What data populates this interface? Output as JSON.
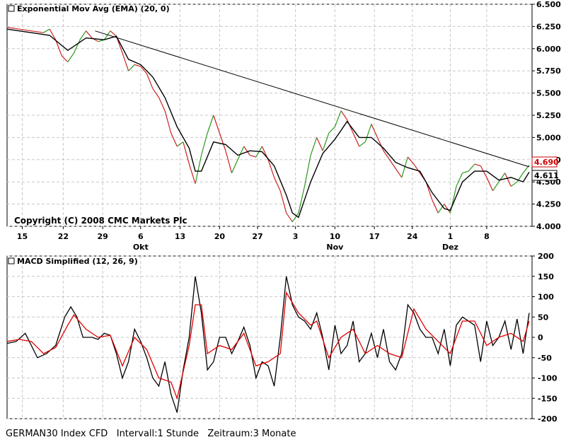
{
  "footer": {
    "instrument": "GERMAN30 Index CFD",
    "interval": "Intervall:1 Stunde",
    "period": "Zeitraum:3 Monate"
  },
  "colors": {
    "up": "#2a9a1a",
    "down": "#cc2020",
    "ema": "#000000",
    "macd": "#000000",
    "signal": "#e00000",
    "grid": "#c8c8c8",
    "current_price_box": "#cc0000"
  },
  "chart_data": [
    {
      "type": "line",
      "title": "Exponential Mov Avg (EMA) (20, 0)",
      "copyright": "Copyright (C) 2008 CMC Markets Plc",
      "ylim": [
        4.0,
        6.5
      ],
      "yticks": [
        "4.000",
        "4.250",
        "4.500",
        "4.750",
        "5.000",
        "5.250",
        "5.500",
        "5.750",
        "6.000",
        "6.250",
        "6.500"
      ],
      "x_ticks": [
        "15",
        "22",
        "29",
        "6",
        "13",
        "20",
        "27",
        "3",
        "10",
        "17",
        "24",
        "1",
        "8"
      ],
      "month_labels": [
        "Okt",
        "Nov",
        "Dez"
      ],
      "price_label": "4.690",
      "ema_label": "4.611",
      "price_path_points": [
        [
          0,
          6.24
        ],
        [
          4,
          6.22
        ],
        [
          8,
          6.2
        ],
        [
          12,
          6.18
        ],
        [
          14,
          6.22
        ],
        [
          16,
          6.1
        ],
        [
          18,
          5.92
        ],
        [
          20,
          5.85
        ],
        [
          22,
          5.95
        ],
        [
          24,
          6.1
        ],
        [
          26,
          6.2
        ],
        [
          28,
          6.12
        ],
        [
          30,
          6.08
        ],
        [
          32,
          6.1
        ],
        [
          34,
          6.2
        ],
        [
          36,
          6.14
        ],
        [
          38,
          5.95
        ],
        [
          40,
          5.75
        ],
        [
          42,
          5.82
        ],
        [
          44,
          5.8
        ],
        [
          46,
          5.72
        ],
        [
          48,
          5.55
        ],
        [
          50,
          5.45
        ],
        [
          52,
          5.3
        ],
        [
          54,
          5.05
        ],
        [
          56,
          4.9
        ],
        [
          58,
          4.95
        ],
        [
          60,
          4.7
        ],
        [
          62,
          4.48
        ],
        [
          64,
          4.8
        ],
        [
          66,
          5.05
        ],
        [
          68,
          5.25
        ],
        [
          70,
          5.05
        ],
        [
          72,
          4.85
        ],
        [
          74,
          4.6
        ],
        [
          76,
          4.75
        ],
        [
          78,
          4.9
        ],
        [
          80,
          4.8
        ],
        [
          82,
          4.78
        ],
        [
          84,
          4.9
        ],
        [
          86,
          4.75
        ],
        [
          88,
          4.55
        ],
        [
          90,
          4.4
        ],
        [
          92,
          4.15
        ],
        [
          94,
          4.05
        ],
        [
          96,
          4.15
        ],
        [
          98,
          4.45
        ],
        [
          100,
          4.8
        ],
        [
          102,
          5.0
        ],
        [
          104,
          4.85
        ],
        [
          106,
          5.05
        ],
        [
          108,
          5.12
        ],
        [
          110,
          5.3
        ],
        [
          112,
          5.2
        ],
        [
          114,
          5.05
        ],
        [
          116,
          4.9
        ],
        [
          118,
          4.95
        ],
        [
          120,
          5.15
        ],
        [
          122,
          5.0
        ],
        [
          124,
          4.85
        ],
        [
          126,
          4.75
        ],
        [
          128,
          4.65
        ],
        [
          130,
          4.55
        ],
        [
          132,
          4.78
        ],
        [
          134,
          4.7
        ],
        [
          136,
          4.6
        ],
        [
          138,
          4.5
        ],
        [
          140,
          4.3
        ],
        [
          142,
          4.15
        ],
        [
          144,
          4.25
        ],
        [
          146,
          4.15
        ],
        [
          148,
          4.45
        ],
        [
          150,
          4.6
        ],
        [
          152,
          4.62
        ],
        [
          154,
          4.7
        ],
        [
          156,
          4.68
        ],
        [
          158,
          4.55
        ],
        [
          160,
          4.4
        ],
        [
          162,
          4.5
        ],
        [
          164,
          4.6
        ],
        [
          166,
          4.45
        ],
        [
          168,
          4.5
        ],
        [
          170,
          4.6
        ],
        [
          172,
          4.69
        ]
      ],
      "ema_path_points": [
        [
          0,
          6.22
        ],
        [
          8,
          6.18
        ],
        [
          14,
          6.15
        ],
        [
          20,
          5.98
        ],
        [
          26,
          6.12
        ],
        [
          32,
          6.1
        ],
        [
          36,
          6.14
        ],
        [
          40,
          5.88
        ],
        [
          44,
          5.82
        ],
        [
          48,
          5.68
        ],
        [
          52,
          5.45
        ],
        [
          56,
          5.12
        ],
        [
          60,
          4.88
        ],
        [
          62,
          4.62
        ],
        [
          64,
          4.62
        ],
        [
          68,
          4.95
        ],
        [
          72,
          4.92
        ],
        [
          76,
          4.8
        ],
        [
          80,
          4.85
        ],
        [
          84,
          4.84
        ],
        [
          88,
          4.68
        ],
        [
          92,
          4.35
        ],
        [
          94,
          4.15
        ],
        [
          96,
          4.1
        ],
        [
          100,
          4.5
        ],
        [
          104,
          4.82
        ],
        [
          108,
          4.98
        ],
        [
          112,
          5.18
        ],
        [
          116,
          5.0
        ],
        [
          120,
          5.0
        ],
        [
          124,
          4.88
        ],
        [
          128,
          4.72
        ],
        [
          132,
          4.66
        ],
        [
          136,
          4.62
        ],
        [
          140,
          4.38
        ],
        [
          144,
          4.2
        ],
        [
          146,
          4.18
        ],
        [
          150,
          4.5
        ],
        [
          154,
          4.62
        ],
        [
          158,
          4.62
        ],
        [
          162,
          4.52
        ],
        [
          166,
          4.55
        ],
        [
          170,
          4.5
        ],
        [
          172,
          4.61
        ]
      ],
      "trendline": [
        [
          29,
          6.2
        ],
        [
          172,
          4.67
        ]
      ]
    },
    {
      "type": "line",
      "title": "MACD Simplified (12, 26, 9)",
      "ylim": [
        -200,
        200
      ],
      "yticks": [
        "200",
        "150",
        "100",
        "50",
        "0",
        "-50",
        "-100",
        "-150",
        "-200"
      ],
      "series": [
        {
          "values": [
            [
              0,
              -15
            ],
            [
              3,
              -10
            ],
            [
              6,
              10
            ],
            [
              8,
              -20
            ],
            [
              10,
              -50
            ],
            [
              13,
              -40
            ],
            [
              16,
              -20
            ],
            [
              19,
              50
            ],
            [
              21,
              75
            ],
            [
              23,
              50
            ],
            [
              25,
              0
            ],
            [
              28,
              0
            ],
            [
              30,
              -5
            ],
            [
              32,
              10
            ],
            [
              34,
              5
            ],
            [
              36,
              -40
            ],
            [
              38,
              -100
            ],
            [
              40,
              -60
            ],
            [
              42,
              20
            ],
            [
              44,
              -10
            ],
            [
              46,
              -50
            ],
            [
              48,
              -100
            ],
            [
              50,
              -120
            ],
            [
              52,
              -60
            ],
            [
              54,
              -140
            ],
            [
              56,
              -185
            ],
            [
              58,
              -80
            ],
            [
              60,
              0
            ],
            [
              62,
              150
            ],
            [
              64,
              60
            ],
            [
              66,
              -80
            ],
            [
              68,
              -60
            ],
            [
              70,
              0
            ],
            [
              72,
              0
            ],
            [
              74,
              -40
            ],
            [
              76,
              -10
            ],
            [
              78,
              25
            ],
            [
              80,
              -20
            ],
            [
              82,
              -100
            ],
            [
              84,
              -60
            ],
            [
              86,
              -70
            ],
            [
              88,
              -120
            ],
            [
              90,
              0
            ],
            [
              92,
              150
            ],
            [
              94,
              80
            ],
            [
              96,
              50
            ],
            [
              98,
              40
            ],
            [
              100,
              20
            ],
            [
              102,
              60
            ],
            [
              104,
              0
            ],
            [
              106,
              -80
            ],
            [
              108,
              30
            ],
            [
              110,
              -40
            ],
            [
              112,
              -20
            ],
            [
              114,
              40
            ],
            [
              116,
              -60
            ],
            [
              118,
              -40
            ],
            [
              120,
              10
            ],
            [
              122,
              -50
            ],
            [
              124,
              20
            ],
            [
              126,
              -60
            ],
            [
              128,
              -80
            ],
            [
              130,
              -40
            ],
            [
              132,
              80
            ],
            [
              134,
              60
            ],
            [
              136,
              20
            ],
            [
              138,
              0
            ],
            [
              140,
              0
            ],
            [
              142,
              -40
            ],
            [
              144,
              20
            ],
            [
              146,
              -70
            ],
            [
              148,
              30
            ],
            [
              150,
              50
            ],
            [
              152,
              40
            ],
            [
              154,
              30
            ],
            [
              156,
              -60
            ],
            [
              158,
              40
            ],
            [
              160,
              -20
            ],
            [
              162,
              0
            ],
            [
              164,
              40
            ],
            [
              166,
              -30
            ],
            [
              168,
              45
            ],
            [
              170,
              -40
            ],
            [
              172,
              60
            ]
          ]
        },
        {
          "values": [
            [
              0,
              -10
            ],
            [
              4,
              -5
            ],
            [
              8,
              -10
            ],
            [
              12,
              -40
            ],
            [
              16,
              -25
            ],
            [
              20,
              30
            ],
            [
              22,
              55
            ],
            [
              26,
              20
            ],
            [
              30,
              0
            ],
            [
              34,
              5
            ],
            [
              38,
              -70
            ],
            [
              42,
              0
            ],
            [
              46,
              -30
            ],
            [
              50,
              -100
            ],
            [
              54,
              -110
            ],
            [
              56,
              -150
            ],
            [
              60,
              -20
            ],
            [
              62,
              80
            ],
            [
              64,
              80
            ],
            [
              66,
              -40
            ],
            [
              70,
              -20
            ],
            [
              74,
              -30
            ],
            [
              78,
              10
            ],
            [
              82,
              -70
            ],
            [
              86,
              -60
            ],
            [
              90,
              -40
            ],
            [
              92,
              110
            ],
            [
              96,
              60
            ],
            [
              100,
              30
            ],
            [
              102,
              40
            ],
            [
              106,
              -50
            ],
            [
              110,
              0
            ],
            [
              114,
              20
            ],
            [
              118,
              -40
            ],
            [
              122,
              -20
            ],
            [
              126,
              -40
            ],
            [
              130,
              -50
            ],
            [
              134,
              70
            ],
            [
              138,
              20
            ],
            [
              142,
              -10
            ],
            [
              146,
              -40
            ],
            [
              150,
              40
            ],
            [
              154,
              40
            ],
            [
              158,
              -20
            ],
            [
              162,
              0
            ],
            [
              166,
              10
            ],
            [
              170,
              -10
            ],
            [
              172,
              40
            ]
          ]
        }
      ]
    }
  ]
}
